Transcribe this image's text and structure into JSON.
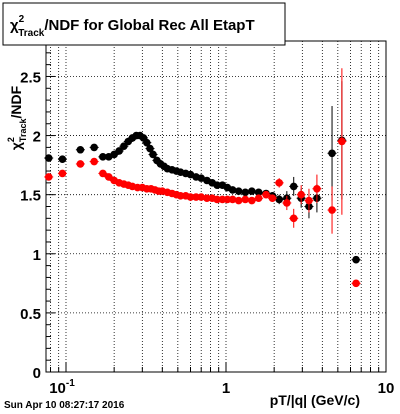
{
  "footer": {
    "timestamp": "Sun Apr 10 08:27:17 2016"
  },
  "chart_data": {
    "type": "scatter",
    "title_prefix": "χ",
    "title_sup": "2",
    "title_sub": "Track",
    "title_suffix": "/NDF for Global Rec All EtapT",
    "xlabel": "pT/|q| (GeV/c)",
    "ylabel_prefix": "χ",
    "ylabel_sup": "2",
    "ylabel_sub": "Track",
    "ylabel_suffix": "/NDF",
    "x_scale": "log",
    "xlim": [
      0.075,
      10
    ],
    "ylim": [
      0,
      2.8
    ],
    "grid": true,
    "x_ticks": [
      {
        "value": 0.1,
        "label": "10",
        "sup": "-1"
      },
      {
        "value": 1,
        "label": "1"
      },
      {
        "value": 10,
        "label": "10"
      }
    ],
    "y_ticks": [
      {
        "value": 0,
        "label": "0"
      },
      {
        "value": 0.5,
        "label": "0.5"
      },
      {
        "value": 1,
        "label": "1"
      },
      {
        "value": 1.5,
        "label": "1.5"
      },
      {
        "value": 2,
        "label": "2"
      },
      {
        "value": 2.5,
        "label": "2.5"
      }
    ],
    "series": [
      {
        "color": "#000000",
        "points": [
          [
            0.078,
            1.81,
            0.02
          ],
          [
            0.095,
            1.8,
            0.02
          ],
          [
            0.123,
            1.88,
            0.02
          ],
          [
            0.15,
            1.9,
            0.02
          ],
          [
            0.17,
            1.82,
            0.02
          ],
          [
            0.185,
            1.82,
            0.02
          ],
          [
            0.2,
            1.84,
            0.02
          ],
          [
            0.215,
            1.87,
            0.02
          ],
          [
            0.23,
            1.91,
            0.02
          ],
          [
            0.245,
            1.95,
            0.02
          ],
          [
            0.26,
            1.98,
            0.02
          ],
          [
            0.275,
            2.0,
            0.02
          ],
          [
            0.29,
            2.0,
            0.02
          ],
          [
            0.305,
            1.98,
            0.02
          ],
          [
            0.32,
            1.94,
            0.02
          ],
          [
            0.335,
            1.89,
            0.02
          ],
          [
            0.35,
            1.84,
            0.02
          ],
          [
            0.37,
            1.79,
            0.02
          ],
          [
            0.39,
            1.76,
            0.02
          ],
          [
            0.41,
            1.74,
            0.02
          ],
          [
            0.43,
            1.72,
            0.02
          ],
          [
            0.46,
            1.71,
            0.02
          ],
          [
            0.49,
            1.7,
            0.02
          ],
          [
            0.52,
            1.69,
            0.02
          ],
          [
            0.56,
            1.68,
            0.02
          ],
          [
            0.6,
            1.67,
            0.02
          ],
          [
            0.65,
            1.65,
            0.02
          ],
          [
            0.7,
            1.64,
            0.02
          ],
          [
            0.76,
            1.62,
            0.02
          ],
          [
            0.82,
            1.6,
            0.02
          ],
          [
            0.88,
            1.58,
            0.02
          ],
          [
            0.95,
            1.58,
            0.02
          ],
          [
            1.02,
            1.56,
            0.02
          ],
          [
            1.1,
            1.54,
            0.02
          ],
          [
            1.2,
            1.53,
            0.02
          ],
          [
            1.32,
            1.52,
            0.02
          ],
          [
            1.45,
            1.53,
            0.02
          ],
          [
            1.6,
            1.52,
            0.02
          ],
          [
            1.78,
            1.51,
            0.03
          ],
          [
            1.95,
            1.49,
            0.03
          ],
          [
            2.15,
            1.46,
            0.04
          ],
          [
            2.4,
            1.47,
            0.06
          ],
          [
            2.65,
            1.57,
            0.08
          ],
          [
            2.95,
            1.47,
            0.08
          ],
          [
            3.3,
            1.4,
            0.1
          ],
          [
            3.7,
            1.47,
            0.12
          ],
          [
            4.6,
            1.85,
            0.4
          ],
          [
            5.3,
            1.96,
            0.5
          ],
          [
            6.5,
            0.95,
            0.03
          ]
        ]
      },
      {
        "color": "#ff0000",
        "points": [
          [
            0.078,
            1.65,
            0.02
          ],
          [
            0.095,
            1.68,
            0.02
          ],
          [
            0.123,
            1.76,
            0.02
          ],
          [
            0.15,
            1.78,
            0.02
          ],
          [
            0.17,
            1.68,
            0.02
          ],
          [
            0.185,
            1.65,
            0.02
          ],
          [
            0.2,
            1.62,
            0.02
          ],
          [
            0.215,
            1.6,
            0.02
          ],
          [
            0.23,
            1.59,
            0.02
          ],
          [
            0.245,
            1.58,
            0.02
          ],
          [
            0.26,
            1.57,
            0.02
          ],
          [
            0.28,
            1.56,
            0.02
          ],
          [
            0.3,
            1.56,
            0.02
          ],
          [
            0.32,
            1.55,
            0.02
          ],
          [
            0.34,
            1.55,
            0.02
          ],
          [
            0.36,
            1.54,
            0.02
          ],
          [
            0.38,
            1.53,
            0.02
          ],
          [
            0.4,
            1.53,
            0.02
          ],
          [
            0.43,
            1.52,
            0.02
          ],
          [
            0.46,
            1.51,
            0.02
          ],
          [
            0.49,
            1.5,
            0.02
          ],
          [
            0.52,
            1.49,
            0.02
          ],
          [
            0.56,
            1.49,
            0.02
          ],
          [
            0.6,
            1.48,
            0.02
          ],
          [
            0.65,
            1.48,
            0.02
          ],
          [
            0.7,
            1.48,
            0.02
          ],
          [
            0.76,
            1.47,
            0.02
          ],
          [
            0.82,
            1.47,
            0.02
          ],
          [
            0.88,
            1.46,
            0.02
          ],
          [
            0.95,
            1.46,
            0.02
          ],
          [
            1.02,
            1.46,
            0.02
          ],
          [
            1.1,
            1.46,
            0.02
          ],
          [
            1.2,
            1.45,
            0.02
          ],
          [
            1.32,
            1.46,
            0.02
          ],
          [
            1.45,
            1.45,
            0.02
          ],
          [
            1.6,
            1.47,
            0.02
          ],
          [
            1.78,
            1.5,
            0.03
          ],
          [
            1.95,
            1.47,
            0.03
          ],
          [
            2.15,
            1.6,
            0.04
          ],
          [
            2.4,
            1.43,
            0.06
          ],
          [
            2.65,
            1.3,
            0.08
          ],
          [
            2.95,
            1.5,
            0.08
          ],
          [
            3.3,
            1.45,
            0.1
          ],
          [
            3.7,
            1.55,
            0.12
          ],
          [
            4.6,
            1.37,
            0.2
          ],
          [
            5.3,
            1.95,
            0.62
          ],
          [
            6.5,
            0.75,
            0.03
          ]
        ]
      }
    ]
  }
}
